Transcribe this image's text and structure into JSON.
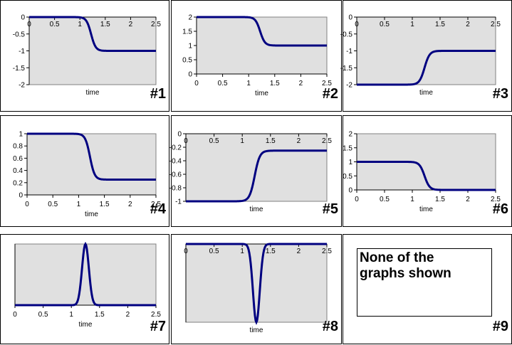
{
  "charts": [
    {
      "id": 1,
      "label": "#1",
      "xlabel": "time",
      "type": "sigmoid",
      "from": 0,
      "to": -1,
      "ylim": [
        -2,
        0
      ],
      "yticks": [
        "0",
        "-0.5",
        "-1",
        "-1.5",
        "-2"
      ],
      "xticks": [
        "0",
        "0.5",
        "1",
        "1.5",
        "2",
        "2.5"
      ],
      "xaxis": "top"
    },
    {
      "id": 2,
      "label": "#2",
      "xlabel": "time",
      "type": "sigmoid",
      "from": 2,
      "to": 1,
      "ylim": [
        0,
        2
      ],
      "yticks": [
        "2",
        "1.5",
        "1",
        "0.5",
        "0"
      ],
      "xticks": [
        "0",
        "0.5",
        "1",
        "1.5",
        "2",
        "2.5"
      ],
      "xaxis": "bottom"
    },
    {
      "id": 3,
      "label": "#3",
      "xlabel": "time",
      "type": "sigmoid",
      "from": -2,
      "to": -1,
      "ylim": [
        -2,
        0
      ],
      "yticks": [
        "0",
        "-0.5",
        "-1",
        "-1.5",
        "-2"
      ],
      "xticks": [
        "0",
        "0.5",
        "1",
        "1.5",
        "2",
        "2.5"
      ],
      "xaxis": "top"
    },
    {
      "id": 4,
      "label": "#4",
      "xlabel": "time",
      "type": "sigmoid",
      "from": 1,
      "to": 0.25,
      "ylim": [
        0,
        1
      ],
      "yticks": [
        "1",
        "0.8",
        "0.6",
        "0.4",
        "0.2",
        "0"
      ],
      "xticks": [
        "0",
        "0.5",
        "1",
        "1.5",
        "2",
        "2.5"
      ],
      "xaxis": "bottom"
    },
    {
      "id": 5,
      "label": "#5",
      "xlabel": "time",
      "type": "sigmoid",
      "from": -1,
      "to": -0.25,
      "ylim": [
        -1,
        0
      ],
      "yticks": [
        "0",
        "-0.2",
        "-0.4",
        "-0.6",
        "-0.8",
        "-1"
      ],
      "xticks": [
        "0",
        "0.5",
        "1",
        "1.5",
        "2",
        "2.5"
      ],
      "xaxis": "top"
    },
    {
      "id": 6,
      "label": "#6",
      "xlabel": "time",
      "type": "sigmoid",
      "from": 1,
      "to": 0,
      "ylim": [
        0,
        2
      ],
      "yticks": [
        "2",
        "1.5",
        "1",
        "0.5",
        "0"
      ],
      "xticks": [
        "0",
        "0.5",
        "1",
        "1.5",
        "2",
        "2.5"
      ],
      "xaxis": "bottom"
    },
    {
      "id": 7,
      "label": "#7",
      "xlabel": "time",
      "type": "bump",
      "from": 0,
      "to": 0,
      "ylim": [
        0,
        1
      ],
      "yticks": [],
      "xticks": [
        "0",
        "0.5",
        "1",
        "1.5",
        "2",
        "2.5"
      ],
      "xaxis": "bottom"
    },
    {
      "id": 8,
      "label": "#8",
      "xlabel": "time",
      "type": "dip",
      "from": 0,
      "to": 0,
      "ylim": [
        -1,
        0
      ],
      "yticks": [],
      "xticks": [
        "0",
        "0.5",
        "1",
        "1.5",
        "2",
        "2.5"
      ],
      "xaxis": "top"
    }
  ],
  "chart_data": [
    {
      "type": "line",
      "x": [
        0,
        1,
        1.1,
        1.2,
        1.3,
        1.4,
        1.5,
        2.5
      ],
      "values": [
        0,
        0,
        -0.1,
        -0.45,
        -0.85,
        -0.98,
        -1,
        -1
      ],
      "xlabel": "time",
      "ylim": [
        -2,
        0
      ]
    },
    {
      "type": "line",
      "x": [
        0,
        1,
        1.1,
        1.2,
        1.3,
        1.4,
        1.5,
        2.5
      ],
      "values": [
        2,
        2,
        1.9,
        1.55,
        1.15,
        1.02,
        1,
        1
      ],
      "xlabel": "time",
      "ylim": [
        0,
        2
      ]
    },
    {
      "type": "line",
      "x": [
        0,
        1,
        1.1,
        1.2,
        1.3,
        1.4,
        1.5,
        2.5
      ],
      "values": [
        -2,
        -2,
        -1.9,
        -1.55,
        -1.15,
        -1.02,
        -1,
        -1
      ],
      "xlabel": "time",
      "ylim": [
        -2,
        0
      ]
    },
    {
      "type": "line",
      "x": [
        0,
        1,
        1.1,
        1.2,
        1.3,
        1.4,
        1.5,
        2.5
      ],
      "values": [
        1,
        1,
        0.93,
        0.66,
        0.36,
        0.26,
        0.25,
        0.25
      ],
      "xlabel": "time",
      "ylim": [
        0,
        1
      ]
    },
    {
      "type": "line",
      "x": [
        0,
        1,
        1.1,
        1.2,
        1.3,
        1.4,
        1.5,
        2.5
      ],
      "values": [
        -1,
        -1,
        -0.93,
        -0.66,
        -0.36,
        -0.26,
        -0.25,
        -0.25
      ],
      "xlabel": "time",
      "ylim": [
        -1,
        0
      ]
    },
    {
      "type": "line",
      "x": [
        0,
        1,
        1.1,
        1.2,
        1.3,
        1.4,
        1.5,
        2.5
      ],
      "values": [
        1,
        1,
        0.9,
        0.55,
        0.15,
        0.02,
        0,
        0
      ],
      "xlabel": "time",
      "ylim": [
        0,
        2
      ]
    },
    {
      "type": "line",
      "x": [
        0,
        1,
        1.1,
        1.2,
        1.25,
        1.3,
        1.4,
        1.5,
        2.5
      ],
      "values": [
        0,
        0,
        0.3,
        0.95,
        1,
        0.95,
        0.3,
        0,
        0
      ],
      "xlabel": "time",
      "ylim": [
        0,
        1
      ]
    },
    {
      "type": "line",
      "x": [
        0,
        1,
        1.1,
        1.2,
        1.25,
        1.3,
        1.4,
        1.5,
        2.5
      ],
      "values": [
        0,
        0,
        -0.3,
        -0.95,
        -1,
        -0.95,
        -0.3,
        0,
        0
      ],
      "xlabel": "time",
      "ylim": [
        -1,
        0
      ]
    }
  ],
  "none_option": {
    "label": "#9",
    "text": "None of the graphs shown"
  },
  "colors": {
    "plot_bg": "#e0e0e0",
    "line": "#000080",
    "axis": "#000000"
  }
}
